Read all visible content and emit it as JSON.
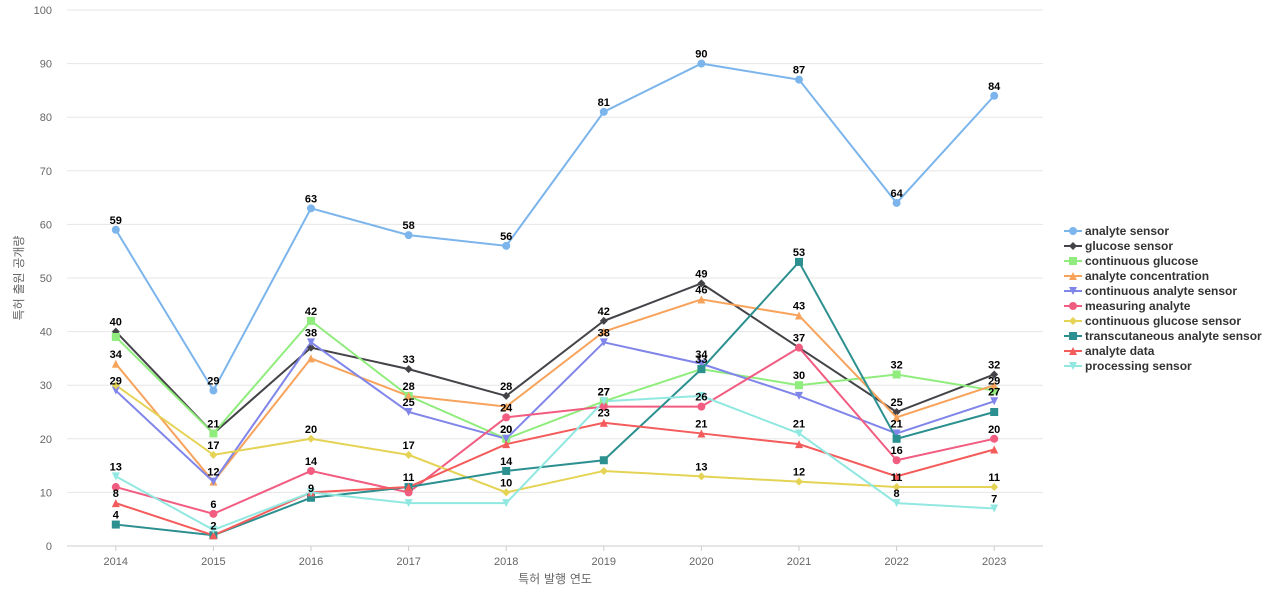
{
  "chart_data": {
    "type": "line",
    "xlabel": "특허 발행 연도",
    "ylabel": "특허 출원 공개량",
    "ylim": [
      0,
      100
    ],
    "yticks": [
      0,
      10,
      20,
      30,
      40,
      50,
      60,
      70,
      80,
      90,
      100
    ],
    "grid": true,
    "legend_position": "right",
    "x": [
      "2014",
      "2015",
      "2016",
      "2017",
      "2018",
      "2019",
      "2020",
      "2021",
      "2022",
      "2023"
    ],
    "series": [
      {
        "name": "analyte sensor",
        "color": "#7cb5ec",
        "marker": "circle",
        "values": [
          59,
          29,
          63,
          58,
          56,
          81,
          90,
          87,
          64,
          84
        ],
        "labeled": [
          0,
          1,
          2,
          3,
          4,
          5,
          6,
          7,
          8,
          9
        ]
      },
      {
        "name": "glucose sensor",
        "color": "#434348",
        "marker": "diamond",
        "values": [
          40,
          21,
          37,
          33,
          28,
          42,
          49,
          37,
          25,
          32
        ],
        "labeled": [
          0,
          3,
          4,
          5,
          6,
          8,
          9
        ]
      },
      {
        "name": "continuous glucose",
        "color": "#90ed7d",
        "marker": "square",
        "values": [
          39,
          21,
          42,
          28,
          20,
          27,
          33,
          30,
          32,
          29
        ],
        "labeled": [
          1,
          2,
          3,
          4,
          5,
          6,
          7,
          8,
          9
        ]
      },
      {
        "name": "analyte concentration",
        "color": "#f7a35c",
        "marker": "triangle",
        "values": [
          34,
          12,
          35,
          28,
          26,
          40,
          46,
          43,
          24,
          30
        ],
        "labeled": [
          0,
          6,
          7
        ]
      },
      {
        "name": "continuous analyte sensor",
        "color": "#8085e9",
        "marker": "triangle-down",
        "values": [
          29,
          12,
          38,
          25,
          20,
          38,
          34,
          28,
          21,
          27
        ],
        "labeled": [
          0,
          1,
          2,
          3,
          4,
          5,
          6,
          8,
          9
        ]
      },
      {
        "name": "measuring analyte",
        "color": "#f15c80",
        "marker": "circle",
        "values": [
          11,
          6,
          14,
          10,
          24,
          26,
          26,
          37,
          16,
          20
        ],
        "labeled": [
          1,
          2,
          4,
          6,
          7,
          8,
          9
        ]
      },
      {
        "name": "continuous glucose sensor",
        "color": "#e4d354",
        "marker": "diamond",
        "values": [
          30,
          17,
          20,
          17,
          10,
          14,
          13,
          12,
          11,
          11
        ],
        "labeled": [
          1,
          2,
          3,
          4,
          6,
          7,
          8,
          9
        ]
      },
      {
        "name": "transcutaneous analyte sensor",
        "color": "#2b908f",
        "marker": "square",
        "values": [
          4,
          2,
          9,
          11,
          14,
          16,
          33,
          53,
          20,
          25
        ],
        "labeled": [
          0,
          1,
          2,
          4,
          7
        ]
      },
      {
        "name": "analyte data",
        "color": "#f45b5b",
        "marker": "triangle",
        "values": [
          8,
          2,
          10,
          11,
          19,
          23,
          21,
          19,
          13,
          18
        ],
        "labeled": [
          0,
          3,
          5,
          6
        ]
      },
      {
        "name": "processing sensor",
        "color": "#91e8e1",
        "marker": "triangle-down",
        "values": [
          13,
          3,
          10,
          8,
          8,
          27,
          28,
          21,
          8,
          7
        ],
        "labeled": [
          0,
          5,
          7,
          8,
          9
        ]
      }
    ]
  }
}
